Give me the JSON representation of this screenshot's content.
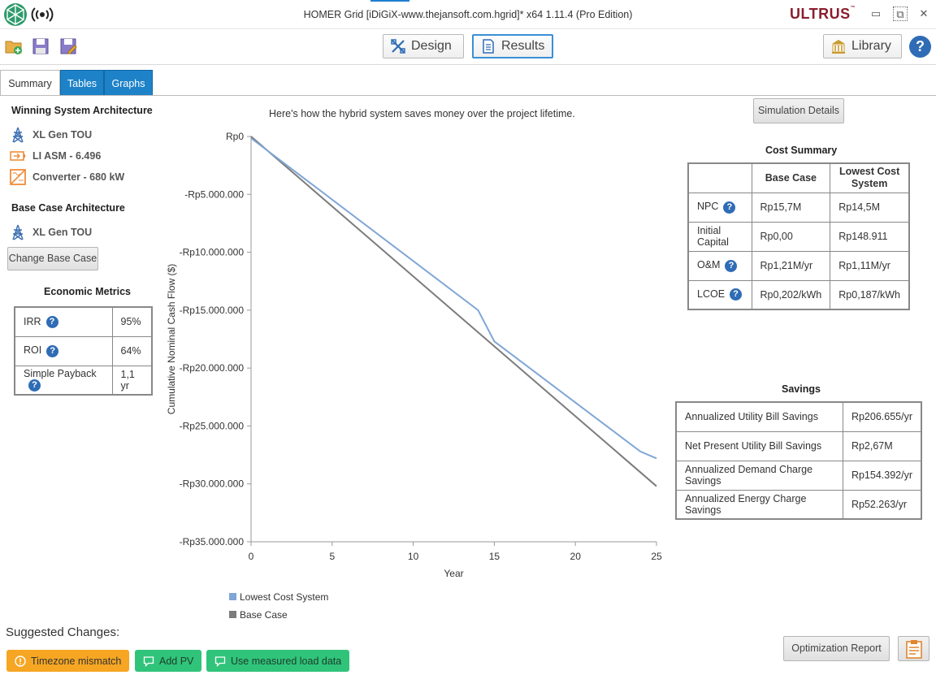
{
  "window": {
    "title": "HOMER Grid [iDiGiX-www.thejansoft.com.hgrid]*  x64 1.11.4 (Pro Edition)",
    "brand": "ULTRUS",
    "brand_mark": "™",
    "controls": {
      "minimize": "▭",
      "restore": "⧉",
      "close": "✕"
    }
  },
  "toolbar": {
    "design_label": "Design",
    "results_label": "Results",
    "library_label": "Library",
    "help_label": "?"
  },
  "tabs": {
    "summary": "Summary",
    "tables": "Tables",
    "graphs": "Graphs"
  },
  "winning": {
    "heading": "Winning System Architecture",
    "items": [
      "XL Gen TOU",
      "LI ASM - 6.496",
      "Converter - 680 kW"
    ]
  },
  "base_case": {
    "heading": "Base Case Architecture",
    "items": [
      "XL Gen TOU"
    ],
    "change_button": "Change Base Case"
  },
  "economic_metrics": {
    "heading": "Economic Metrics",
    "rows": [
      {
        "label": "IRR",
        "value": "95%"
      },
      {
        "label": "ROI",
        "value": "64%"
      },
      {
        "label": "Simple Payback",
        "value": "1,1 yr"
      }
    ]
  },
  "chart_caption": "Here's how the hybrid system saves money over the project lifetime.",
  "simulation_details_button": "Simulation Details",
  "chart_data": {
    "type": "line",
    "title": "",
    "xlabel": "Year",
    "ylabel": "Cumulative Nominal Cash Flow ($)",
    "xlim": [
      0,
      25
    ],
    "ylim": [
      -35000000,
      0
    ],
    "x_ticks": [
      "0",
      "5",
      "10",
      "15",
      "20",
      "25"
    ],
    "y_ticks": [
      "Rp0",
      "-Rp5.000.000",
      "-Rp10.000.000",
      "-Rp15.000.000",
      "-Rp20.000.000",
      "-Rp25.000.000",
      "-Rp30.000.000",
      "-Rp35.000.000"
    ],
    "legend": "bottom-left",
    "series": [
      {
        "name": "Lowest Cost System",
        "color": "#7fa6d6",
        "points": [
          [
            0,
            -149000
          ],
          [
            14,
            -15000000
          ],
          [
            15,
            -17700000
          ],
          [
            24,
            -27200000
          ],
          [
            25,
            -27800000
          ]
        ]
      },
      {
        "name": "Base Case",
        "color": "#7c7c7c",
        "points": [
          [
            0,
            0
          ],
          [
            25,
            -30200000
          ]
        ]
      }
    ]
  },
  "cost_summary": {
    "heading": "Cost Summary",
    "col_base": "Base Case",
    "col_lowest": "Lowest Cost System",
    "rows": [
      {
        "label": "NPC",
        "help": true,
        "base": "Rp15,7M",
        "lowest": "Rp14,5M"
      },
      {
        "label": "Initial Capital",
        "help": false,
        "base": "Rp0,00",
        "lowest": "Rp148.911"
      },
      {
        "label": "O&M",
        "help": true,
        "base": "Rp1,21M/yr",
        "lowest": "Rp1,11M/yr"
      },
      {
        "label": "LCOE",
        "help": true,
        "base": "Rp0,202/kWh",
        "lowest": "Rp0,187/kWh"
      }
    ]
  },
  "savings": {
    "heading": "Savings",
    "rows": [
      {
        "label": "Annualized Utility Bill Savings",
        "value": "Rp206.655/yr"
      },
      {
        "label": "Net Present Utility Bill Savings",
        "value": "Rp2,67M"
      },
      {
        "label": "Annualized Demand Charge Savings",
        "value": "Rp154.392/yr"
      },
      {
        "label": "Annualized Energy Charge Savings",
        "value": "Rp52.263/yr"
      }
    ]
  },
  "suggested": {
    "heading": "Suggested Changes:",
    "chips": [
      "Timezone mismatch",
      "Add PV",
      "Use measured load data"
    ]
  },
  "optimization_report_button": "Optimization Report"
}
